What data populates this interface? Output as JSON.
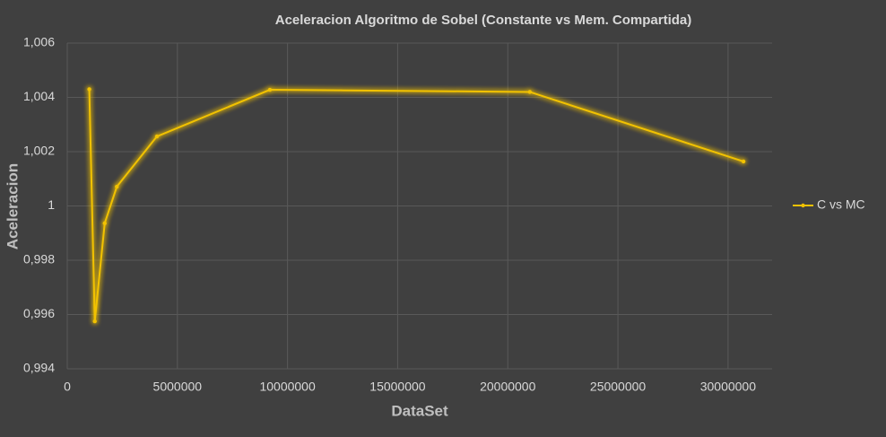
{
  "chart_data": {
    "type": "line",
    "title": "Aceleracion Algoritmo de Sobel (Constante vs Mem. Compartida)",
    "x_label": "DataSet",
    "y_label": "Aceleracion",
    "x": [
      1000000,
      1250000,
      1700000,
      2250000,
      4070000,
      9200000,
      21000000,
      30700000
    ],
    "series": [
      {
        "name": "C vs MC",
        "color": "#f2c200",
        "values": [
          1.0043,
          0.99575,
          0.99936,
          1.00071,
          1.00256,
          1.00428,
          1.0042,
          1.00164
        ]
      }
    ],
    "xlim": [
      0,
      32000000
    ],
    "xticks": [
      0,
      5000000,
      10000000,
      15000000,
      20000000,
      25000000,
      30000000
    ],
    "ylim": [
      0.994,
      1.006
    ],
    "yticks": [
      {
        "value": 0.994,
        "label": "0,994"
      },
      {
        "value": 0.996,
        "label": "0,996"
      },
      {
        "value": 0.998,
        "label": "0,998"
      },
      1,
      {
        "value": 1.002,
        "label": "1,002"
      },
      {
        "value": 1.004,
        "label": "1,004"
      },
      {
        "value": 1.006,
        "label": "1,006"
      }
    ],
    "grid": true,
    "legend": "right"
  }
}
